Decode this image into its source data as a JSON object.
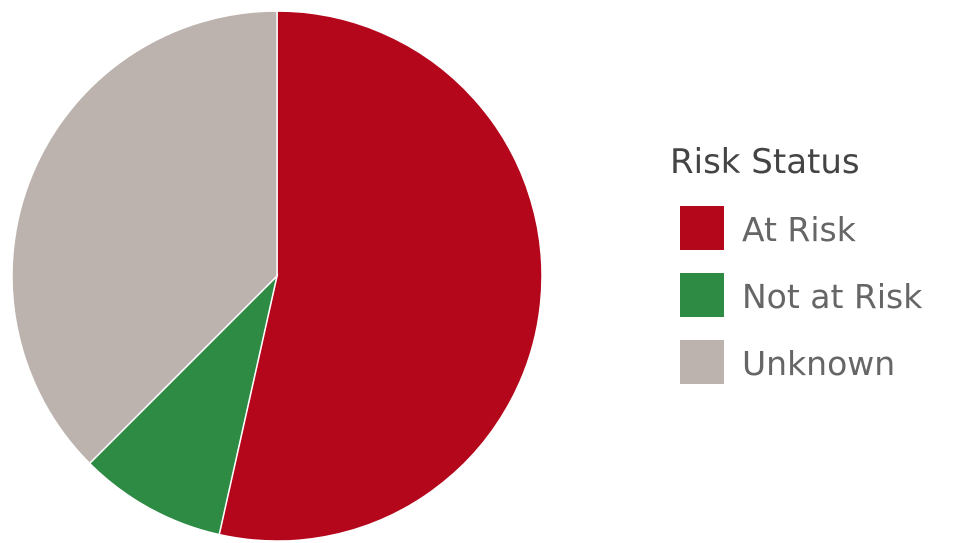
{
  "chart_data": {
    "type": "pie",
    "legend": {
      "title": "Risk Status",
      "placement": "right"
    },
    "slices": [
      {
        "label": "At Risk",
        "value": 53.5,
        "color": "#b5071b"
      },
      {
        "label": "Not at Risk",
        "value": 9.0,
        "color": "#2e8b44"
      },
      {
        "label": "Unknown",
        "value": 37.5,
        "color": "#bcb3ae"
      }
    ]
  }
}
